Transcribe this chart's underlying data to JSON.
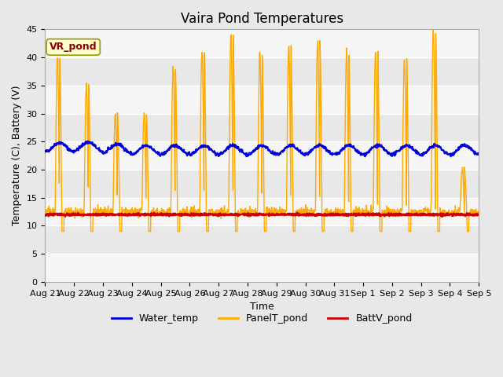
{
  "title": "Vaira Pond Temperatures",
  "xlabel": "Time",
  "ylabel": "Temperature (C), Battery (V)",
  "ylim": [
    0,
    45
  ],
  "yticks": [
    0,
    5,
    10,
    15,
    20,
    25,
    30,
    35,
    40,
    45
  ],
  "x_tick_labels": [
    "Aug 21",
    "Aug 22",
    "Aug 23",
    "Aug 24",
    "Aug 25",
    "Aug 26",
    "Aug 27",
    "Aug 28",
    "Aug 29",
    "Aug 30",
    "Aug 31",
    "Sep 1",
    "Sep 2",
    "Sep 3",
    "Sep 4",
    "Sep 5"
  ],
  "water_color": "#0000dd",
  "panel_color": "#ffaa00",
  "batt_color": "#cc0000",
  "legend_labels": [
    "Water_temp",
    "PanelT_pond",
    "BattV_pond"
  ],
  "annotation_text": "VR_pond",
  "annotation_bg": "#ffffcc",
  "annotation_border": "#999900",
  "bg_color": "#e8e8e8",
  "band_light": "#f5f5f5",
  "band_dark": "#e8e8e8",
  "title_fontsize": 12,
  "axis_fontsize": 9,
  "tick_fontsize": 8,
  "legend_fontsize": 9
}
